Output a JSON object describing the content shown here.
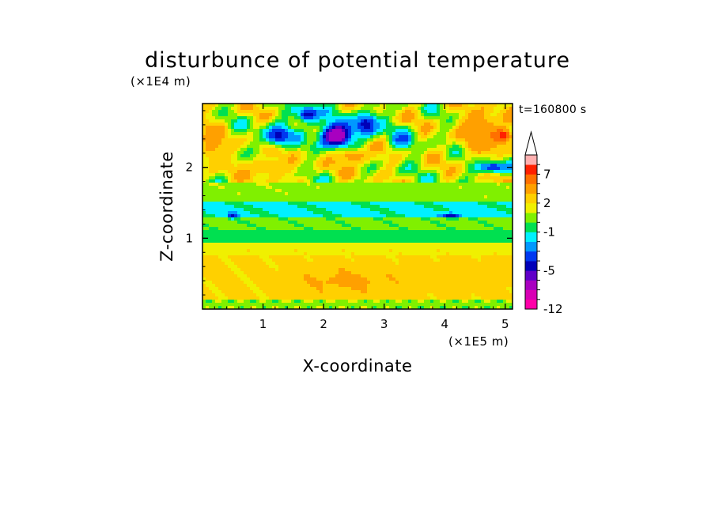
{
  "chart_data": {
    "type": "heatmap",
    "title": "disturbunce of potential temperature",
    "xlabel": "X-coordinate",
    "ylabel": "Z-coordinate",
    "x_scale_label": "(×1E5 m)",
    "y_scale_label": "(×1E4 m)",
    "time_label": "t=160800 s",
    "xlim": [
      0,
      5.12
    ],
    "ylim": [
      0,
      2.9
    ],
    "x_ticks": [
      "1",
      "2",
      "3",
      "4",
      "5"
    ],
    "x_tick_values": [
      1,
      2,
      3,
      4,
      5
    ],
    "y_ticks": [
      "1",
      "2"
    ],
    "y_tick_values": [
      1,
      2
    ],
    "colorbar": {
      "levels": [
        -12,
        -10,
        -8,
        -6,
        -5,
        -4,
        -3,
        -2,
        -1,
        0,
        1,
        2,
        3,
        5,
        7,
        9,
        11
      ],
      "labels": [
        "-12",
        "-5",
        "-1",
        "2",
        "7"
      ],
      "label_values": [
        -12,
        -5,
        -1,
        2,
        7
      ],
      "colors": [
        "#ff00a8",
        "#d800b4",
        "#a800c0",
        "#6000c8",
        "#0000b8",
        "#0038f0",
        "#0098ff",
        "#00f0ff",
        "#00e050",
        "#80f000",
        "#f0f000",
        "#ffd000",
        "#ffa000",
        "#ff7000",
        "#ff2000",
        "#ffb0b0"
      ],
      "extend_max": true
    },
    "bands": [
      {
        "z_min": 0.0,
        "z_max": 0.12,
        "value": 0.5
      },
      {
        "z_min": 0.12,
        "z_max": 0.75,
        "value": 2.4
      },
      {
        "z_min": 0.75,
        "z_max": 0.95,
        "value": 1.5
      },
      {
        "z_min": 0.95,
        "z_max": 1.12,
        "value": -0.5
      },
      {
        "z_min": 1.12,
        "z_max": 1.28,
        "value": 0.4
      },
      {
        "z_min": 1.28,
        "z_max": 1.52,
        "value": -1.3
      },
      {
        "z_min": 1.52,
        "z_max": 1.8,
        "value": 0.5
      },
      {
        "z_min": 1.8,
        "z_max": 2.9,
        "value": 1.2
      }
    ],
    "features": [
      {
        "x": 2.2,
        "z": 2.45,
        "rx": 0.28,
        "rz": 0.18,
        "value": -8
      },
      {
        "x": 1.25,
        "z": 2.45,
        "rx": 0.25,
        "rz": 0.15,
        "value": -4.5
      },
      {
        "x": 1.75,
        "z": 2.75,
        "rx": 0.22,
        "rz": 0.13,
        "value": -4.5
      },
      {
        "x": 2.7,
        "z": 2.6,
        "rx": 0.22,
        "rz": 0.2,
        "value": -4.5
      },
      {
        "x": 3.3,
        "z": 2.4,
        "rx": 0.18,
        "rz": 0.14,
        "value": -3.5
      },
      {
        "x": 4.6,
        "z": 2.5,
        "rx": 0.35,
        "rz": 0.3,
        "value": 5
      },
      {
        "x": 4.95,
        "z": 2.45,
        "rx": 0.15,
        "rz": 0.1,
        "value": 8
      },
      {
        "x": 0.15,
        "z": 2.35,
        "rx": 0.2,
        "rz": 0.3,
        "value": 4
      },
      {
        "x": 2.5,
        "z": 2.15,
        "rx": 0.4,
        "rz": 0.12,
        "value": 3.5
      },
      {
        "x": 1.05,
        "z": 2.0,
        "rx": 0.5,
        "rz": 0.15,
        "value": 3
      },
      {
        "x": 4.8,
        "z": 2.0,
        "rx": 0.3,
        "rz": 0.08,
        "value": -4
      },
      {
        "x": 0.5,
        "z": 1.32,
        "rx": 0.08,
        "rz": 0.04,
        "value": -4.5
      },
      {
        "x": 4.1,
        "z": 1.32,
        "rx": 0.15,
        "rz": 0.04,
        "value": -4.5
      },
      {
        "x": 2.4,
        "z": 0.4,
        "rx": 0.8,
        "rz": 0.18,
        "value": 3.2
      },
      {
        "x": 4.2,
        "z": 0.45,
        "rx": 0.6,
        "rz": 0.15,
        "value": 3.0
      }
    ]
  }
}
